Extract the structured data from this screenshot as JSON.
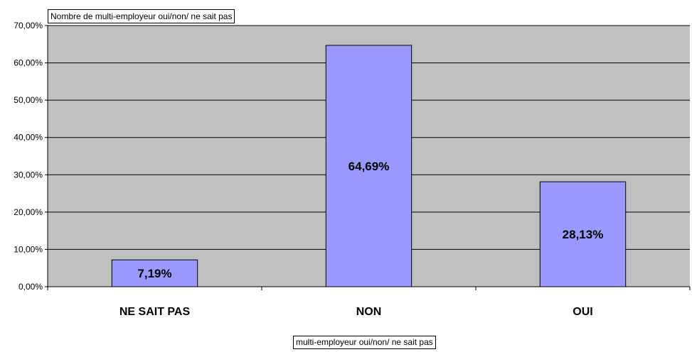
{
  "chart_data": {
    "type": "bar",
    "title": "Nombre de multi-employeur oui/non/ ne sait pas",
    "xlabel": "multi-employeur oui/non/ ne sait pas",
    "ylabel": "",
    "categories": [
      "NE SAIT PAS",
      "NON",
      "OUI"
    ],
    "values": [
      7.19,
      64.69,
      28.13
    ],
    "data_labels": [
      "7,19%",
      "64,69%",
      "28,13%"
    ],
    "ylim": [
      0,
      70
    ],
    "yticks": [
      0,
      10,
      20,
      30,
      40,
      50,
      60,
      70
    ],
    "ytick_labels": [
      "0,00%",
      "10,00%",
      "20,00%",
      "30,00%",
      "40,00%",
      "50,00%",
      "60,00%",
      "70,00%"
    ],
    "grid": true,
    "colors": {
      "plot_background": "#c0c0c0",
      "bar_fill": "#9999ff",
      "bar_stroke": "#000000",
      "gridline": "#000000"
    }
  }
}
